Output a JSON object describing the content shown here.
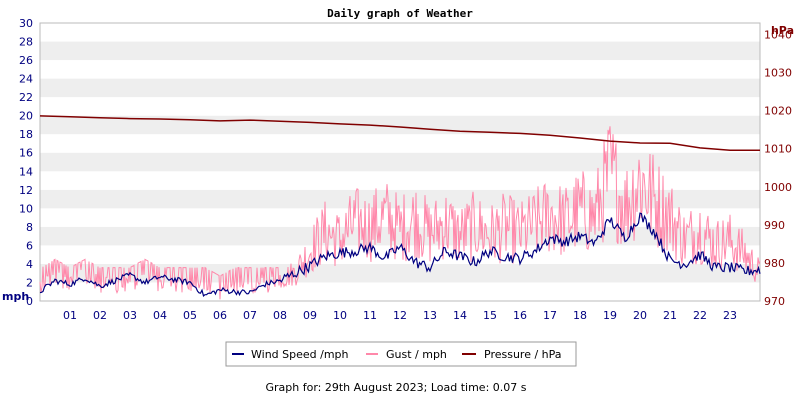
{
  "chart_data": {
    "type": "line",
    "title": "Daily graph of Weather",
    "x_ticks": [
      "01",
      "02",
      "03",
      "04",
      "05",
      "06",
      "07",
      "08",
      "09",
      "10",
      "11",
      "12",
      "13",
      "14",
      "15",
      "16",
      "17",
      "18",
      "19",
      "20",
      "21",
      "22",
      "23"
    ],
    "xlim": [
      0,
      24
    ],
    "y_left": {
      "unit": "mph",
      "ylim": [
        0,
        30
      ],
      "ticks": [
        0,
        2,
        4,
        6,
        8,
        10,
        12,
        14,
        16,
        18,
        20,
        22,
        24,
        26,
        28,
        30
      ],
      "color": "#000080"
    },
    "y_right": {
      "unit": "hPa",
      "ylim": [
        970,
        1043
      ],
      "ticks": [
        970,
        980,
        990,
        1000,
        1010,
        1020,
        1030,
        1040
      ],
      "color": "#800000"
    },
    "grid": "horizontal alternating bands",
    "legend_position": "bottom-center",
    "series": [
      {
        "name": "Wind Speed /mph",
        "axis": "left",
        "color": "#000080",
        "x": [
          0,
          0.5,
          1,
          1.5,
          2,
          2.5,
          3,
          3.5,
          4,
          4.5,
          5,
          5.5,
          6,
          6.5,
          7,
          7.5,
          8,
          8.5,
          9,
          9.5,
          10,
          10.5,
          11,
          11.5,
          12,
          12.5,
          13,
          13.5,
          14,
          14.5,
          15,
          15.5,
          16,
          16.5,
          17,
          17.5,
          18,
          18.5,
          19,
          19.5,
          20,
          20.5,
          21,
          21.5,
          22,
          22.5,
          23,
          23.5,
          24
        ],
        "values": [
          1.0,
          2.2,
          1.8,
          2.5,
          1.6,
          2.2,
          2.8,
          2.0,
          2.6,
          2.3,
          2.0,
          0.6,
          1.2,
          1.0,
          0.9,
          1.8,
          2.2,
          3.0,
          3.8,
          4.8,
          5.2,
          5.4,
          5.8,
          4.6,
          5.8,
          4.2,
          3.6,
          5.4,
          4.8,
          4.2,
          5.4,
          4.8,
          4.6,
          5.4,
          6.8,
          6.4,
          7.0,
          6.2,
          8.8,
          6.8,
          9.2,
          7.4,
          4.4,
          4.0,
          5.0,
          3.6,
          3.6,
          3.2,
          3.4
        ]
      },
      {
        "name": "Gust / mph",
        "axis": "left",
        "color": "#ff88aa",
        "x": [
          0,
          0.5,
          1,
          1.5,
          2,
          2.5,
          3,
          3.5,
          4,
          4.5,
          5,
          5.5,
          6,
          6.5,
          7,
          7.5,
          8,
          8.5,
          9,
          9.5,
          10,
          10.5,
          11,
          11.5,
          12,
          12.5,
          13,
          13.5,
          14,
          14.5,
          15,
          15.5,
          16,
          16.5,
          17,
          17.5,
          18,
          18.5,
          19,
          19.5,
          20,
          20.5,
          21,
          21.5,
          22,
          22.5,
          23,
          23.5,
          24
        ],
        "values": [
          3.5,
          4.5,
          3.6,
          4.5,
          3.6,
          3.6,
          3.6,
          4.5,
          3.6,
          3.6,
          3.6,
          3.6,
          2.7,
          3.6,
          3.6,
          3.6,
          3.6,
          4.5,
          8.0,
          11.0,
          9.8,
          12.5,
          11.8,
          13.5,
          11.5,
          13.2,
          10.8,
          12.5,
          10.5,
          12.0,
          10.6,
          11.8,
          10.8,
          12.2,
          13.8,
          12.6,
          14.5,
          13.5,
          20.5,
          15.0,
          19.5,
          16.0,
          13.5,
          9.8,
          11.5,
          9.0,
          9.6,
          7.5,
          4.5
        ]
      },
      {
        "name": "Pressure / hPa",
        "axis": "right",
        "color": "#800000",
        "x": [
          0,
          1,
          2,
          3,
          4,
          5,
          6,
          7,
          8,
          9,
          10,
          11,
          12,
          13,
          14,
          15,
          16,
          17,
          18,
          19,
          20,
          21,
          22,
          23,
          24
        ],
        "values": [
          1018.6,
          1018.4,
          1018.1,
          1017.9,
          1017.8,
          1017.6,
          1017.3,
          1017.5,
          1017.2,
          1016.9,
          1016.5,
          1016.2,
          1015.7,
          1015.1,
          1014.6,
          1014.3,
          1014.0,
          1013.5,
          1012.8,
          1012.0,
          1011.5,
          1011.4,
          1010.2,
          1009.6,
          1009.6
        ]
      }
    ]
  },
  "footer": {
    "text": "Graph for: 29th August 2023; Load time: 0.07 s"
  }
}
